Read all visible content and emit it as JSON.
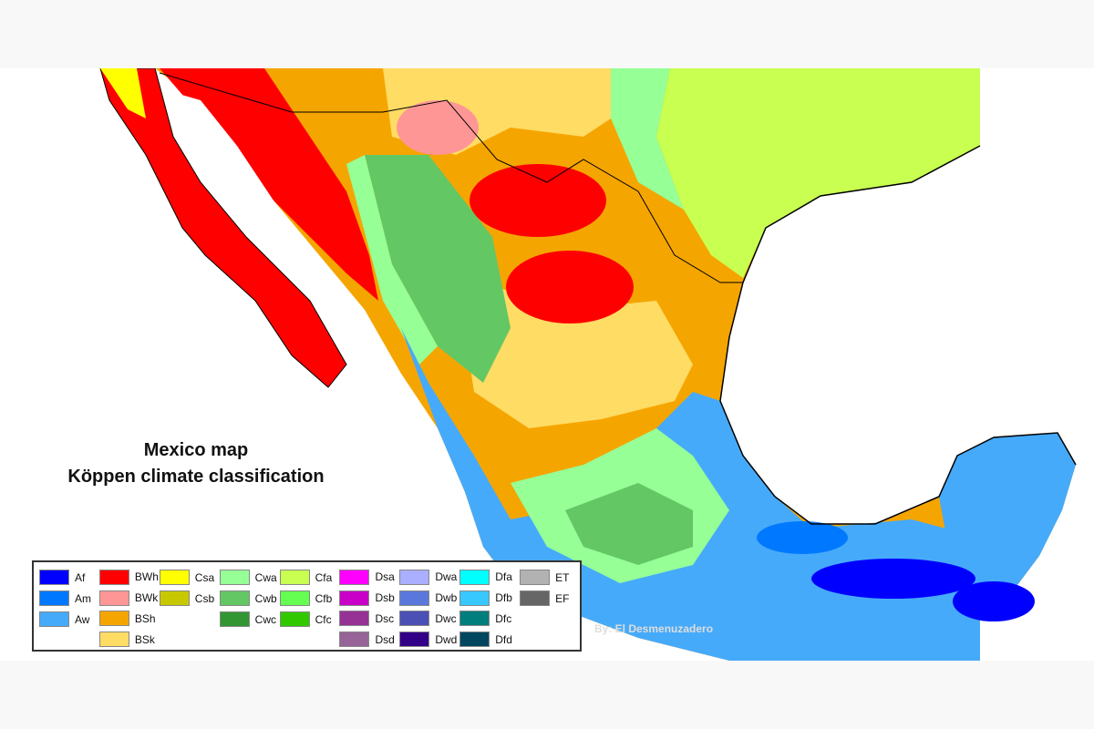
{
  "title_line1": "Mexico map",
  "title_line2": "Köppen climate classification",
  "credit": "By: El Desmenuzadero",
  "legend": [
    [
      {
        "code": "Af",
        "color": "#0000fe"
      },
      {
        "code": "Am",
        "color": "#0078ff"
      },
      {
        "code": "Aw",
        "color": "#46aafa"
      }
    ],
    [
      {
        "code": "BWh",
        "color": "#ff0000"
      },
      {
        "code": "BWk",
        "color": "#ff9696"
      },
      {
        "code": "BSh",
        "color": "#f5a500"
      },
      {
        "code": "BSk",
        "color": "#ffdc64"
      }
    ],
    [
      {
        "code": "Csa",
        "color": "#ffff00"
      },
      {
        "code": "Csb",
        "color": "#c8c800"
      }
    ],
    [
      {
        "code": "Cwa",
        "color": "#96ff96"
      },
      {
        "code": "Cwb",
        "color": "#63c764"
      },
      {
        "code": "Cwc",
        "color": "#329633"
      }
    ],
    [
      {
        "code": "Cfa",
        "color": "#c8ff50"
      },
      {
        "code": "Cfb",
        "color": "#64ff50"
      },
      {
        "code": "Cfc",
        "color": "#32c800"
      }
    ],
    [
      {
        "code": "Dsa",
        "color": "#ff00ff"
      },
      {
        "code": "Dsb",
        "color": "#c800c8"
      },
      {
        "code": "Dsc",
        "color": "#963296"
      },
      {
        "code": "Dsd",
        "color": "#966496"
      }
    ],
    [
      {
        "code": "Dwa",
        "color": "#aaafff"
      },
      {
        "code": "Dwb",
        "color": "#5a78dc"
      },
      {
        "code": "Dwc",
        "color": "#4b50b4"
      },
      {
        "code": "Dwd",
        "color": "#320087"
      }
    ],
    [
      {
        "code": "Dfa",
        "color": "#00ffff"
      },
      {
        "code": "Dfb",
        "color": "#37c8ff"
      },
      {
        "code": "Dfc",
        "color": "#007d7d"
      },
      {
        "code": "Dfd",
        "color": "#00465f"
      }
    ],
    [
      {
        "code": "ET",
        "color": "#b2b2b2"
      },
      {
        "code": "EF",
        "color": "#666666"
      }
    ]
  ]
}
